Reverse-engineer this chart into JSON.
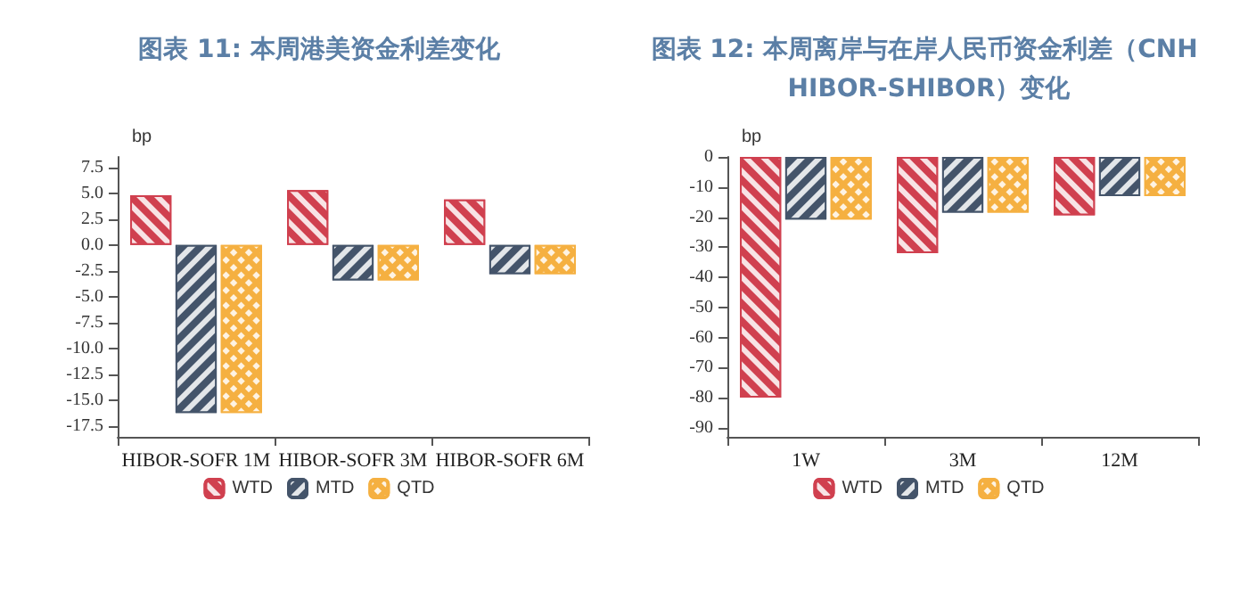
{
  "chart_data": [
    {
      "type": "bar",
      "title": "图表 11: 本周港美资金利差变化",
      "ylabel": "bp",
      "categories": [
        "HIBOR-SOFR 1M",
        "HIBOR-SOFR 3M",
        "HIBOR-SOFR 6M"
      ],
      "series": [
        {
          "name": "WTD",
          "color": "#d0404f",
          "values": [
            4.8,
            5.3,
            4.4
          ]
        },
        {
          "name": "MTD",
          "color": "#44546a",
          "values": [
            -16.2,
            -3.4,
            -2.8
          ]
        },
        {
          "name": "QTD",
          "color": "#f5b041",
          "values": [
            -16.2,
            -3.4,
            -2.8
          ]
        }
      ],
      "ylim": [
        -18.5,
        8.5
      ],
      "yticks": [
        {
          "value": -17.5,
          "label": "-17.5"
        },
        {
          "value": -15,
          "label": "-15.0"
        },
        {
          "value": -12.5,
          "label": "-12.5"
        },
        {
          "value": -10,
          "label": "-10.0"
        },
        {
          "value": -7.5,
          "label": "-7.5"
        },
        {
          "value": -5,
          "label": "-5.0"
        },
        {
          "value": -2.5,
          "label": "-2.5"
        },
        {
          "value": 0,
          "label": "0.0"
        },
        {
          "value": 2.5,
          "label": "2.5"
        },
        {
          "value": 5,
          "label": "5.0"
        },
        {
          "value": 7.5,
          "label": "7.5"
        }
      ],
      "grid": false,
      "legend": "bottom"
    },
    {
      "type": "bar",
      "title": "图表 12: 本周离岸与在岸人民币资金利差（CNH HIBOR-SHIBOR）变化",
      "ylabel": "bp",
      "categories": [
        "1W",
        "3M",
        "12M"
      ],
      "series": [
        {
          "name": "WTD",
          "color": "#d0404f",
          "values": [
            -80,
            -32,
            -19.4
          ]
        },
        {
          "name": "MTD",
          "color": "#44546a",
          "values": [
            -20.8,
            -18.5,
            -13
          ]
        },
        {
          "name": "QTD",
          "color": "#f5b041",
          "values": [
            -20.8,
            -18.5,
            -13
          ]
        }
      ],
      "ylim": [
        -93,
        0
      ],
      "yticks": [
        -90,
        -80,
        -70,
        -60,
        -50,
        -40,
        -30,
        -20,
        -10,
        0
      ],
      "grid": false,
      "legend": "bottom"
    }
  ]
}
